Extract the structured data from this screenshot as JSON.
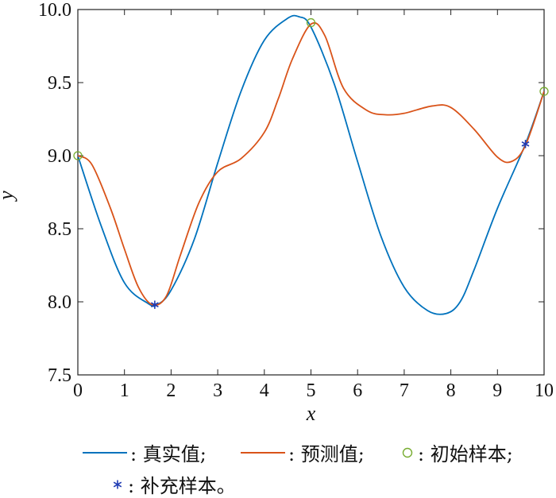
{
  "chart_data": {
    "type": "line",
    "xlabel": "x",
    "ylabel": "y",
    "xlim": [
      0,
      10
    ],
    "ylim": [
      7.5,
      10.0
    ],
    "xticks": [
      "0",
      "1",
      "2",
      "3",
      "4",
      "5",
      "6",
      "7",
      "8",
      "9",
      "10"
    ],
    "yticks": [
      "7.5",
      "8.0",
      "8.5",
      "9.0",
      "9.5",
      "10.0"
    ],
    "grid": false,
    "series": [
      {
        "name": "真实值",
        "kind": "line",
        "color": "#0072BD",
        "x": [
          0,
          0.5,
          1.0,
          1.5,
          1.7,
          2.0,
          2.5,
          3.0,
          3.5,
          4.0,
          4.5,
          4.75,
          5.0,
          5.5,
          6.0,
          6.5,
          7.0,
          7.5,
          7.9,
          8.2,
          8.5,
          9.0,
          9.6,
          10.0
        ],
        "y": [
          9.0,
          8.52,
          8.13,
          7.99,
          7.98,
          8.08,
          8.43,
          8.95,
          9.44,
          9.79,
          9.94,
          9.95,
          9.88,
          9.49,
          8.96,
          8.45,
          8.1,
          7.94,
          7.92,
          8.0,
          8.22,
          8.64,
          9.08,
          9.44
        ]
      },
      {
        "name": "预测值",
        "kind": "line",
        "color": "#D95319",
        "x": [
          0,
          0.3,
          0.7,
          1.0,
          1.3,
          1.6,
          1.9,
          2.2,
          2.6,
          3.0,
          3.5,
          4.0,
          4.3,
          4.6,
          5.0,
          5.3,
          5.7,
          6.2,
          6.6,
          7.0,
          7.6,
          8.0,
          8.5,
          9.0,
          9.3,
          9.6,
          10.0
        ],
        "y": [
          9.0,
          8.94,
          8.64,
          8.36,
          8.1,
          7.98,
          8.04,
          8.32,
          8.68,
          8.89,
          8.98,
          9.16,
          9.39,
          9.66,
          9.9,
          9.82,
          9.46,
          9.31,
          9.28,
          9.29,
          9.34,
          9.33,
          9.18,
          8.99,
          8.96,
          9.07,
          9.44
        ]
      },
      {
        "name": "初始样本",
        "kind": "scatter",
        "marker": "circle",
        "color": "#77AC30",
        "x": [
          0,
          5.0,
          10.0
        ],
        "y": [
          9.0,
          9.91,
          9.44
        ]
      },
      {
        "name": "补充样本",
        "kind": "scatter",
        "marker": "asterisk",
        "color": "#1F3BB3",
        "x": [
          1.65,
          9.6
        ],
        "y": [
          7.98,
          9.08
        ]
      }
    ]
  },
  "legend": {
    "true_value": ": 真实值;",
    "predicted": ": 预测值;",
    "initial_samples": ": 初始样本;",
    "supplementary_samples": ": 补充样本。"
  },
  "colors": {
    "true_line": "#0072BD",
    "pred_line": "#D95319",
    "initial_marker": "#77AC30",
    "supp_marker": "#1F3BB3"
  }
}
